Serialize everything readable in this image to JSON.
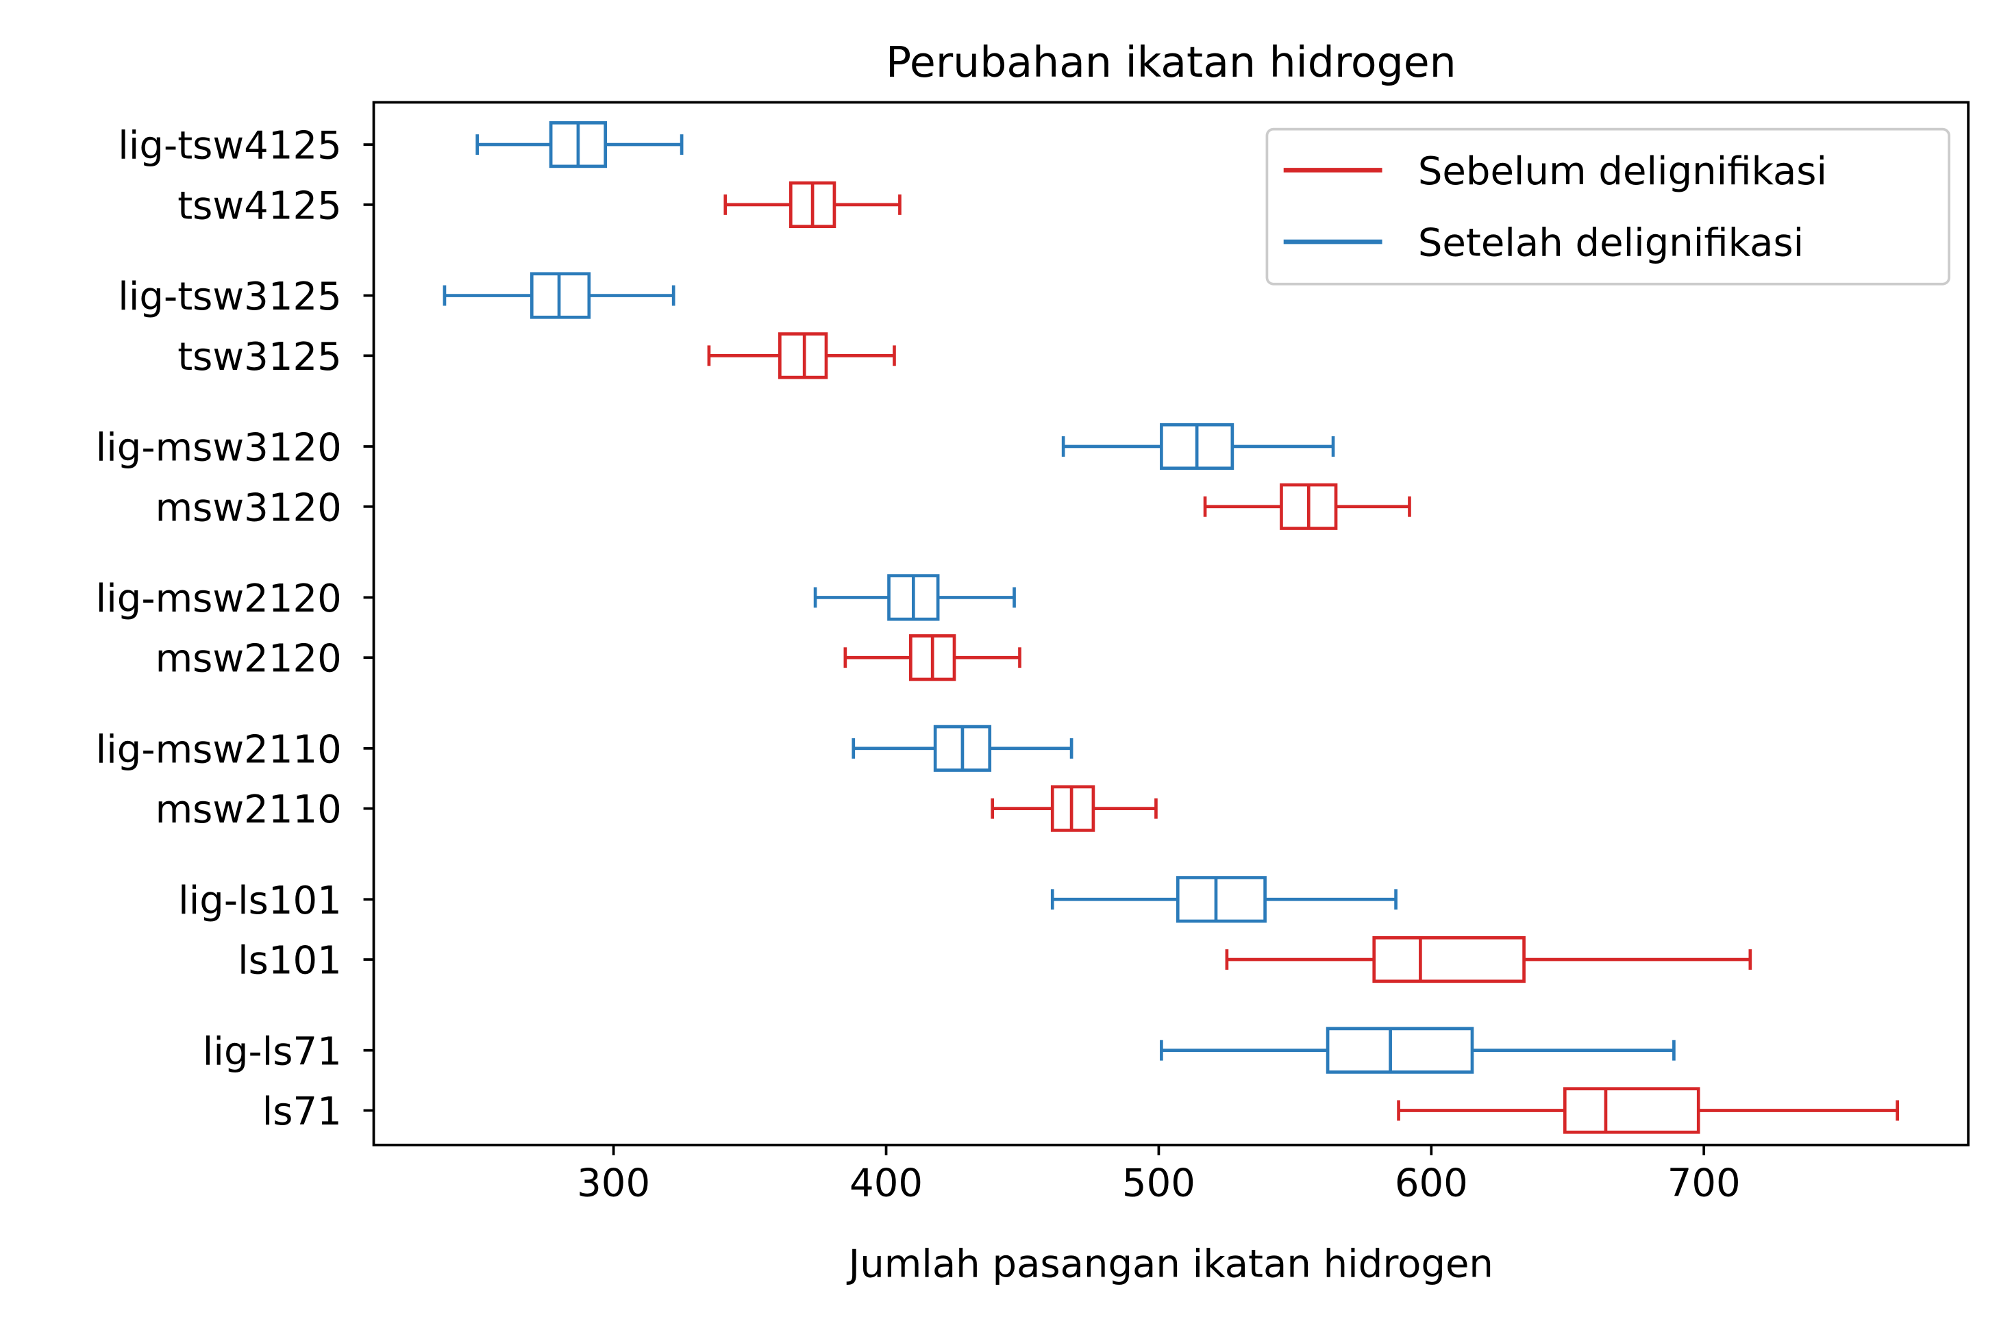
{
  "chart_data": {
    "type": "boxplot",
    "orientation": "horizontal",
    "title": "Perubahan ikatan hidrogen",
    "x_label": "Jumlah pasangan ikatan hidrogen",
    "categories": [
      "lig-tsw4125",
      "tsw4125",
      "lig-tsw3125",
      "tsw3125",
      "lig-msw3120",
      "msw3120",
      "lig-msw2120",
      "msw2120",
      "lig-msw2110",
      "msw2110",
      "lig-ls101",
      "ls101",
      "lig-ls71",
      "ls71"
    ],
    "series": [
      {
        "name": "Sebelum delignifikasi",
        "color": "#d62728",
        "values": [
          null,
          [
            341,
            365,
            373,
            381,
            405
          ],
          null,
          [
            335,
            361,
            370,
            378,
            403
          ],
          null,
          [
            517,
            545,
            555,
            565,
            592
          ],
          null,
          [
            385,
            409,
            417,
            425,
            449
          ],
          null,
          [
            439,
            461,
            468,
            476,
            499
          ],
          null,
          [
            525,
            579,
            596,
            634,
            717
          ],
          null,
          [
            588,
            649,
            664,
            698,
            771
          ]
        ]
      },
      {
        "name": "Setelah delignifikasi",
        "color": "#2b7bba",
        "values": [
          [
            250,
            277,
            287,
            297,
            325
          ],
          null,
          [
            238,
            270,
            280,
            291,
            322
          ],
          null,
          [
            465,
            501,
            514,
            527,
            564
          ],
          null,
          [
            374,
            401,
            410,
            419,
            447
          ],
          null,
          [
            388,
            418,
            428,
            438,
            468
          ],
          null,
          [
            461,
            507,
            521,
            539,
            587
          ],
          null,
          [
            501,
            562,
            585,
            615,
            689
          ],
          null
        ]
      }
    ],
    "xlim": [
      212,
      797
    ],
    "xticks": [
      300,
      400,
      500,
      600,
      700
    ],
    "legend": "upper right"
  }
}
